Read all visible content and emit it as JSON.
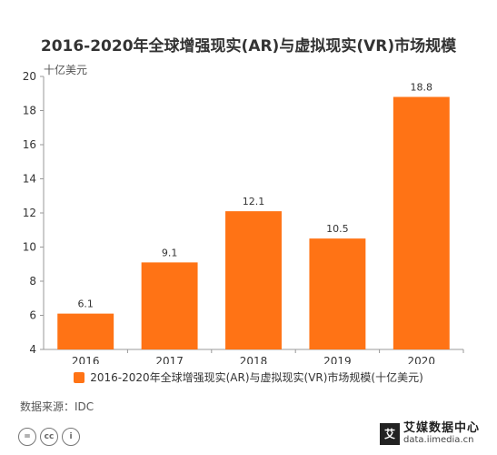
{
  "chart_data": {
    "type": "bar",
    "title": "2016-2020年全球增强现实(AR)与虚拟现实(VR)市场规模",
    "unit_label": "十亿美元",
    "categories": [
      "2016",
      "2017",
      "2018",
      "2019",
      "2020"
    ],
    "series": [
      {
        "name": "2016-2020年全球增强现实(AR)与虚拟现实(VR)市场规模(十亿美元)",
        "values": [
          6.1,
          9.1,
          12.1,
          10.5,
          18.8
        ]
      }
    ],
    "data_labels": [
      "6.1",
      "9.1",
      "12.1",
      "10.5",
      "18.8"
    ],
    "ylim": [
      4,
      20
    ],
    "yticks": [
      "4",
      "6",
      "8",
      "10",
      "12",
      "14",
      "16",
      "18",
      "20"
    ],
    "grid": false,
    "legend_position": "bottom",
    "bar_color": "#ff7315"
  },
  "footer": {
    "source": "数据来源：IDC",
    "license_icons": [
      "=",
      "cc",
      "i"
    ],
    "logo_mark": "艾",
    "logo_cn": "艾媒数据中心",
    "logo_en": "data.iimedia.cn"
  }
}
